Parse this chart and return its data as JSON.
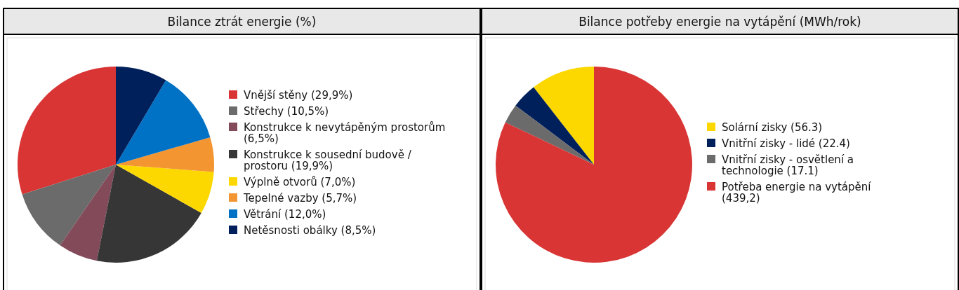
{
  "chart_data": [
    {
      "type": "pie",
      "title": "Bilance ztrát energie (%)",
      "legend": "right",
      "categories": [
        "Vnější stěny (29,9%)",
        "Střechy (10,5%)",
        "Konstrukce k nevytápěným prostorům (6,5%)",
        "Konstrukce k sousední budově / prostoru (19,9%)",
        "Výplně otvorů (7,0%)",
        "Tepelné vazby (5,7%)",
        "Větrání (12,0%)",
        "Netěsnosti obálky (8,5%)"
      ],
      "values": [
        29.9,
        10.5,
        6.5,
        19.9,
        7.0,
        5.7,
        12.0,
        8.5
      ],
      "colors": [
        "#d93535",
        "#6b6b6b",
        "#834a5a",
        "#363636",
        "#fcd800",
        "#f39531",
        "#0072c6",
        "#00205b"
      ]
    },
    {
      "type": "pie",
      "title": "Bilance potřeby energie na vytápění (MWh/rok)",
      "legend": "right",
      "categories": [
        "Solární zisky (56.3)",
        "Vnitřní zisky - lidé (22.4)",
        "Vnitřní zisky - osvětlení a technologie (17.1)",
        "Potřeba energie na vytápění (439,2)"
      ],
      "values": [
        56.3,
        22.4,
        17.1,
        439.2
      ],
      "colors": [
        "#fcd800",
        "#00205b",
        "#6b6b6b",
        "#d93535"
      ]
    }
  ]
}
